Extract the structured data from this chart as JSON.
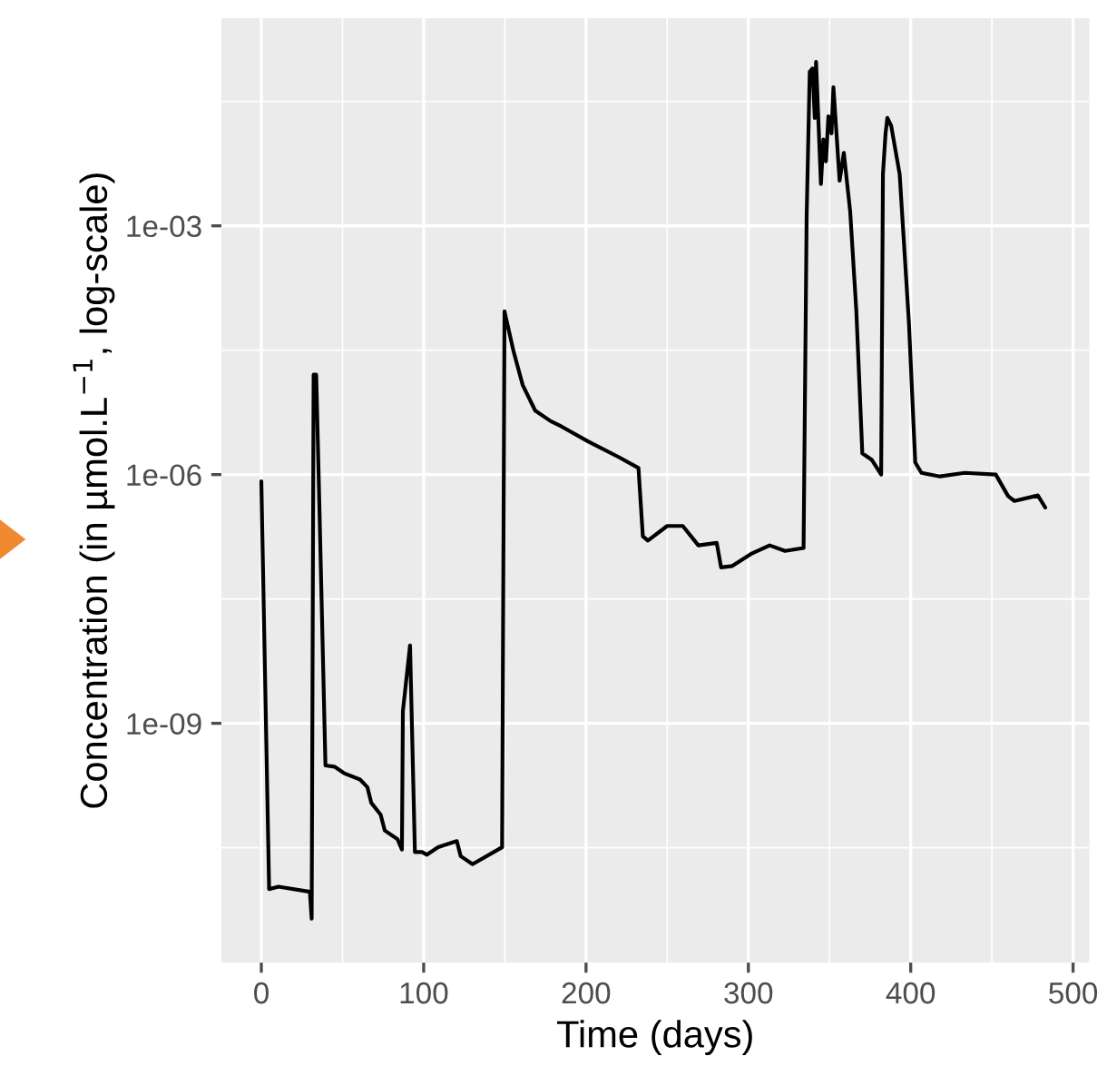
{
  "chart_data": {
    "type": "line",
    "xlabel": "Time (days)",
    "ylabel": "Concentration (in µmol.L$^{−1}$, log-scale)",
    "x": [
      0,
      4.8,
      10.5,
      29.9,
      31,
      32.2,
      33.8,
      35.7,
      39.5,
      45,
      51,
      60.8,
      65.3,
      67.7,
      73.5,
      76,
      83.9,
      86.6,
      87.2,
      91.6,
      94.6,
      99,
      102,
      108.9,
      120.4,
      122.8,
      130.1,
      148.3,
      149.8,
      155.3,
      161,
      168.7,
      178.3,
      184.9,
      201.5,
      220.8,
      232.3,
      235,
      238.1,
      250,
      259.6,
      269.2,
      280.5,
      283.2,
      290.1,
      301.5,
      313.1,
      322.6,
      334,
      335.9,
      337.8,
      339.5,
      340.9,
      341.7,
      344.7,
      346.2,
      347.8,
      349.3,
      351.2,
      352.4,
      356.2,
      358.8,
      362.7,
      366.5,
      370.2,
      376.1,
      381.8,
      382.9,
      384.5,
      385.6,
      388,
      393.2,
      398.9,
      402.8,
      406.6,
      418,
      433.3,
      452.4,
      460,
      463.9,
      478.3,
      482.9
    ],
    "series": [
      {
        "color": "#000000",
        "values": [
          8.3e-07,
          1e-11,
          1.07e-11,
          9.3e-12,
          4.4e-12,
          1.6e-05,
          1.6e-05,
          4.7e-07,
          3.1e-10,
          3e-10,
          2.5e-10,
          2.1e-10,
          1.7e-10,
          1.1e-10,
          7.9e-11,
          5.1e-11,
          4e-11,
          3e-11,
          1.4e-09,
          8.7e-09,
          2.8e-11,
          2.8e-11,
          2.6e-11,
          3.2e-11,
          3.8e-11,
          2.5e-11,
          2e-11,
          3.2e-11,
          9.3e-05,
          3.1e-05,
          1.2e-05,
          5.9e-06,
          4.4e-06,
          3.8e-06,
          2.5e-06,
          1.6e-06,
          1.2e-06,
          1.8e-07,
          1.6e-07,
          2.4e-07,
          2.4e-07,
          1.4e-07,
          1.5e-07,
          7.6e-08,
          7.9e-08,
          1.1e-07,
          1.4e-07,
          1.2e-07,
          1.3e-07,
          0.0013,
          0.072,
          0.079,
          0.02,
          0.095,
          0.0032,
          0.011,
          0.006,
          0.021,
          0.013,
          0.047,
          0.0035,
          0.0076,
          0.0015,
          9.5e-05,
          1.8e-06,
          1.5e-06,
          1e-06,
          0.0042,
          0.013,
          0.02,
          0.016,
          0.0042,
          6.8e-05,
          1.4e-06,
          1.05e-06,
          9.5e-07,
          1.05e-06,
          1e-06,
          5.5e-07,
          4.8e-07,
          5.6e-07,
          4e-07
        ]
      }
    ],
    "log": "y",
    "xlim": [
      -24.6,
      510
    ],
    "ylim": [
      1.3e-12,
      0.32
    ],
    "xticks": [
      0,
      100,
      200,
      300,
      400,
      500
    ],
    "yticks": [
      {
        "value": 1e-09,
        "label": "1e-09"
      },
      {
        "value": 1e-06,
        "label": "1e-06"
      },
      {
        "value": 0.001,
        "label": "1e-03"
      }
    ],
    "grid": true,
    "legend": false,
    "marker": "none",
    "line_style": "solid"
  }
}
